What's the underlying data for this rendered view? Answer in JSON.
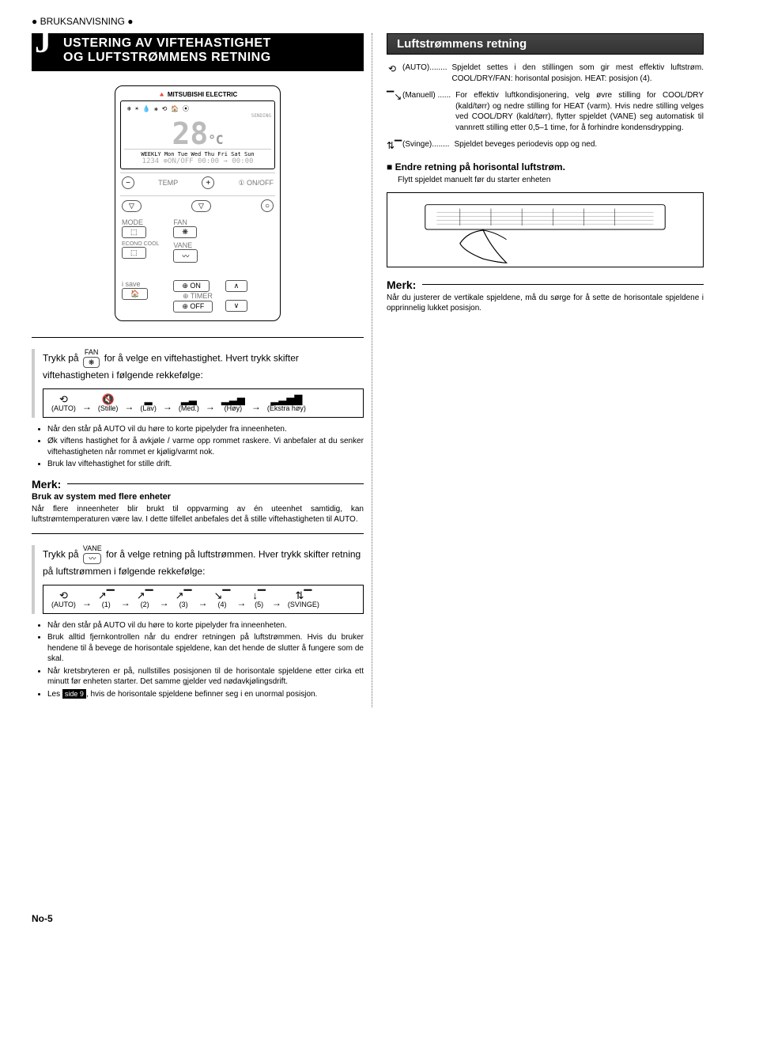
{
  "topBar": "● BRUKSANVISNING ●",
  "mainTitle": {
    "bigLetter": "J",
    "line1": "USTERING AV VIFTEHASTIGHET",
    "line2": "OG LUFTSTRØMMENS RETNING"
  },
  "remote": {
    "brand": "🔺 MITSUBISHI ELECTRIC",
    "lcdIcons": "❄ ☀ 💧 ❋ ⟲    🏠 ⦿",
    "sending": "SENDING",
    "temp": "28",
    "tempUnit": "°C",
    "days": "WEEKLY Mon Tue Wed Thu Fri Sat Sun",
    "timerLine": "1234 ⊕ON/OFF 00:00 → 00:00",
    "tempLabel": "TEMP",
    "onoff": "① ON/OFF",
    "mode": "MODE",
    "fan": "FAN",
    "econo": "ECONO COOL",
    "vane": "VANE",
    "isave": "i save",
    "on": "⊕ ON",
    "timerLabel": "⊕ TIMER",
    "off": "⊕ OFF"
  },
  "fanStep": {
    "label": "FAN",
    "textBefore": "Trykk på ",
    "textAfter": " for å velge en viftehastighet. Hvert trykk skifter viftehastigheten i følgende rekkefølge:",
    "seq": [
      {
        "icon": "⟲",
        "label": "(AUTO)"
      },
      {
        "icon": "🔇",
        "label": "(Stille)"
      },
      {
        "icon": "▂",
        "label": "(Lav)"
      },
      {
        "icon": "▂▃",
        "label": "(Med.)"
      },
      {
        "icon": "▂▃▅",
        "label": "(Høy)"
      },
      {
        "icon": "▂▃▅▇",
        "label": "(Ekstra høy)"
      }
    ],
    "bullets": [
      "Når den står på AUTO vil du høre to korte pipelyder fra inneenheten.",
      "Øk viftens hastighet for å avkjøle / varme opp rommet raskere. Vi anbefaler at du senker viftehastigheten når rommet er kjølig/varmt nok.",
      "Bruk lav viftehastighet for stille drift."
    ]
  },
  "merk1": {
    "title": "Merk:",
    "sub": "Bruk av system med flere enheter",
    "body": "Når flere inneenheter blir brukt til oppvarming av én uteenhet samtidig, kan luftstrømtemperaturen være lav. I dette tilfellet anbefales det å stille viftehastigheten til AUTO."
  },
  "vaneStep": {
    "label": "VANE",
    "textBefore": "Trykk på ",
    "textAfter": " for å velge retning på luftstrømmen. Hver trykk skifter retning på luftstrømmen i følgende rekkefølge:",
    "seq": [
      {
        "icon": "⟲",
        "label": "(AUTO)"
      },
      {
        "icon": "↗▔",
        "label": "(1)"
      },
      {
        "icon": "↗▔",
        "label": "(2)"
      },
      {
        "icon": "↗▔",
        "label": "(3)"
      },
      {
        "icon": "↘▔",
        "label": "(4)"
      },
      {
        "icon": "↓▔",
        "label": "(5)"
      },
      {
        "icon": "⇅▔",
        "label": "(SVINGE)"
      }
    ],
    "bullets": [
      "Når den står på AUTO vil du høre to korte pipelyder fra inneenheten.",
      "Bruk alltid fjernkontrollen når du endrer retningen på luftstrømmen. Hvis du bruker hendene til å bevege de horisontale spjeldene, kan det hende de slutter å fungere som de skal.",
      "Når kretsbryteren er på, nullstilles posisjonen til de horisontale spjeldene etter cirka ett minutt før enheten starter. Det samme gjelder ved nødavkjølingsdrift."
    ],
    "lastBulletPre": "Les ",
    "lastBulletRef": "side 9",
    "lastBulletPost": ", hvis de horisontale spjeldene befinner seg i en unormal posisjon."
  },
  "right": {
    "title": "Luftstrømmens retning",
    "rows": [
      {
        "icon": "⟲",
        "label": "(AUTO)........",
        "text": "Spjeldet settes i den stillingen som gir mest effektiv luftstrøm. COOL/DRY/FAN: horisontal posisjon. HEAT: posisjon (4)."
      },
      {
        "icon": "▔↘",
        "label": "(Manuell) ......",
        "text": "For effektiv luftkondisjonering, velg øvre stilling for COOL/DRY (kald/tørr) og nedre stilling for HEAT (varm). Hvis nedre stilling velges ved COOL/DRY (kald/tørr), flytter spjeldet (VANE) seg automatisk til vannrett stilling etter 0,5–1 time, for å forhindre kondensdrypping."
      },
      {
        "icon": "⇅▔",
        "label": "(Svinge)........",
        "text": "Spjeldet beveges periodevis opp og ned."
      }
    ],
    "subTitle": "Endre retning på horisontal luftstrøm.",
    "subText": "Flytt spjeldet manuelt før du starter enheten"
  },
  "merk2": {
    "title": "Merk:",
    "body": "Når du justerer de vertikale spjeldene, må du sørge for å sette de horisontale spjeldene i opprinnelig lukket posisjon."
  },
  "pageNum": "No-5"
}
